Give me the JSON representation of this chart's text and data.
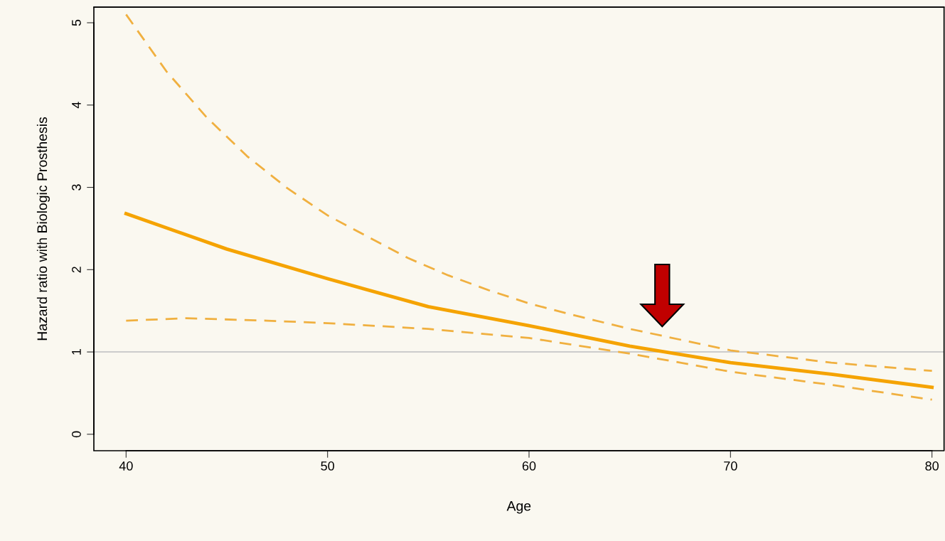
{
  "chart_data": {
    "type": "line",
    "xlabel": "Age",
    "ylabel": "Hazard ratio with Biologic Prosthesis",
    "xlim": [
      38.4,
      80.6
    ],
    "ylim": [
      -0.2,
      5.19
    ],
    "xticks": [
      40,
      50,
      60,
      70,
      80
    ],
    "yticks": [
      0,
      1,
      2,
      3,
      4,
      5
    ],
    "grid": false,
    "legend": false,
    "series": [
      {
        "color": "#f5a300",
        "line_style": "solid",
        "x": [
          40,
          45,
          50,
          55,
          60,
          65,
          70,
          75,
          80
        ],
        "values": [
          2.68,
          2.25,
          1.89,
          1.55,
          1.32,
          1.07,
          0.87,
          0.73,
          0.57
        ]
      },
      {
        "color": "#f0b040",
        "line_style": "dashed",
        "x": [
          40,
          42,
          44,
          46,
          48,
          50,
          52,
          54,
          56,
          58,
          60,
          62,
          65,
          70,
          75,
          80
        ],
        "values": [
          5.1,
          4.41,
          3.85,
          3.38,
          2.99,
          2.66,
          2.4,
          2.14,
          1.93,
          1.75,
          1.59,
          1.46,
          1.28,
          1.02,
          0.87,
          0.77
        ]
      },
      {
        "color": "#f0b040",
        "line_style": "dashed",
        "x": [
          40,
          43,
          47,
          50,
          55,
          60,
          65,
          70,
          75,
          80
        ],
        "values": [
          1.38,
          1.41,
          1.38,
          1.35,
          1.28,
          1.17,
          0.98,
          0.76,
          0.6,
          0.42
        ]
      }
    ],
    "ref_lines": [
      {
        "axis": "y",
        "value": 1,
        "color": "#cccccc",
        "line_style": "solid"
      }
    ]
  }
}
